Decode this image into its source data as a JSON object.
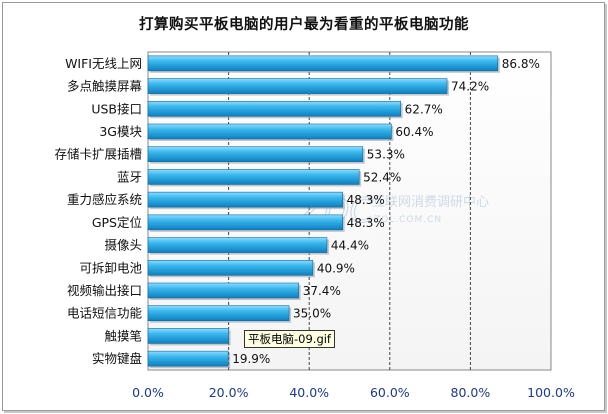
{
  "chart_data": {
    "type": "bar",
    "orientation": "horizontal",
    "title": "打算购买平板电脑的用户最为看重的平板电脑功能",
    "categories": [
      "WIFI无线上网",
      "多点触摸屏幕",
      "USB接口",
      "3G模块",
      "存储卡扩展插槽",
      "蓝牙",
      "重力感应系统",
      "GPS定位",
      "摄像头",
      "可拆卸电池",
      "视频输出接口",
      "电话短信功能",
      "触摸笔",
      "实物键盘"
    ],
    "values": [
      86.8,
      74.2,
      62.7,
      60.4,
      53.3,
      52.4,
      48.3,
      48.3,
      44.4,
      40.9,
      37.4,
      35.0,
      20.0,
      19.9
    ],
    "value_labels": [
      "86.8%",
      "74.2%",
      "62.7%",
      "60.4%",
      "53.3%",
      "52.4%",
      "48.3%",
      "48.3%",
      "44.4%",
      "40.9%",
      "37.4%",
      "35.0%",
      "",
      "19.9%"
    ],
    "xlim": [
      0,
      100
    ],
    "x_ticks": [
      "0.0%",
      "20.0%",
      "40.0%",
      "60.0%",
      "80.0%",
      "100.0%"
    ],
    "grid": "vertical-dashed",
    "bar_color": "#1fa3e0"
  },
  "watermark": {
    "logo": "ZDC",
    "text_cn": "互联网消费调研中心",
    "text_en": "ZOL.COM.CN"
  },
  "tooltip": "平板电脑-09.gif"
}
